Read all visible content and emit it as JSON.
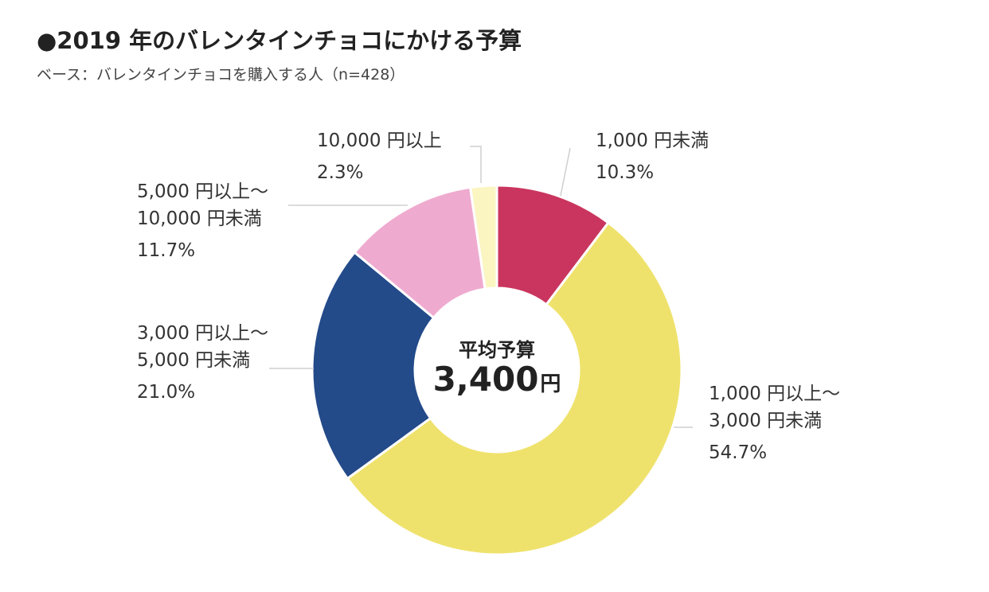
{
  "header": {
    "title": "●2019 年のバレンタインチョコにかける予算",
    "subtitle": "ベース：バレンタインチョコを購入する人（n=428）"
  },
  "center": {
    "label": "平均予算",
    "value": "3,400",
    "unit": "円"
  },
  "chart_data": {
    "type": "pie",
    "donut": true,
    "title": "●2019 年のバレンタインチョコにかける予算",
    "subtitle": "ベース：バレンタインチョコを購入する人（n=428）",
    "unit": "%",
    "slices": [
      {
        "label": "1,000 円未満",
        "value": 10.3,
        "display": "10.3%",
        "color": "#c9355e"
      },
      {
        "label": "1,000 円以上～\n3,000 円未満",
        "value": 54.7,
        "display": "54.7%",
        "color": "#efe26c"
      },
      {
        "label": "3,000 円以上～\n5,000 円未満",
        "value": 21.0,
        "display": "21.0%",
        "color": "#234a89"
      },
      {
        "label": "5,000 円以上～\n10,000 円未満",
        "value": 11.7,
        "display": "11.7%",
        "color": "#efabcf"
      },
      {
        "label": "10,000 円以上",
        "value": 2.3,
        "display": "2.3%",
        "color": "#fbf5c2"
      }
    ]
  }
}
